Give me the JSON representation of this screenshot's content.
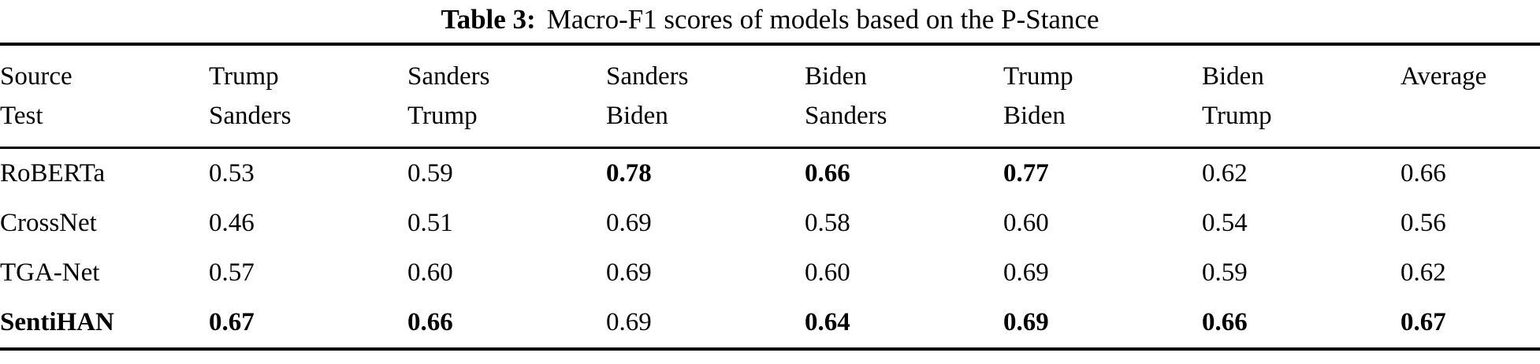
{
  "caption": {
    "label": "Table 3:",
    "text": "Macro-F1 scores of models based on the P-Stance"
  },
  "table": {
    "corner": {
      "top": "Source",
      "bottom": "Test"
    },
    "columns": [
      {
        "source": "Trump",
        "test": "Sanders"
      },
      {
        "source": "Sanders",
        "test": "Trump"
      },
      {
        "source": "Sanders",
        "test": "Biden"
      },
      {
        "source": "Biden",
        "test": "Sanders"
      },
      {
        "source": "Trump",
        "test": "Biden"
      },
      {
        "source": "Biden",
        "test": "Trump"
      }
    ],
    "average_header": "Average",
    "rows": [
      {
        "model": "RoBERTa",
        "model_bold": false,
        "values": [
          "0.53",
          "0.59",
          "0.78",
          "0.66",
          "0.77",
          "0.62",
          "0.66"
        ],
        "bold": [
          false,
          false,
          true,
          true,
          true,
          false,
          false
        ]
      },
      {
        "model": "CrossNet",
        "model_bold": false,
        "values": [
          "0.46",
          "0.51",
          "0.69",
          "0.58",
          "0.60",
          "0.54",
          "0.56"
        ],
        "bold": [
          false,
          false,
          false,
          false,
          false,
          false,
          false
        ]
      },
      {
        "model": "TGA-Net",
        "model_bold": false,
        "values": [
          "0.57",
          "0.60",
          "0.69",
          "0.60",
          "0.69",
          "0.59",
          "0.62"
        ],
        "bold": [
          false,
          false,
          false,
          false,
          false,
          false,
          false
        ]
      },
      {
        "model": "SentiHAN",
        "model_bold": true,
        "values": [
          "0.67",
          "0.66",
          "0.69",
          "0.64",
          "0.69",
          "0.66",
          "0.67"
        ],
        "bold": [
          true,
          true,
          false,
          true,
          true,
          true,
          true
        ]
      }
    ]
  },
  "colors": {
    "background": "#ffffff",
    "text": "#000000",
    "rule": "#000000"
  }
}
